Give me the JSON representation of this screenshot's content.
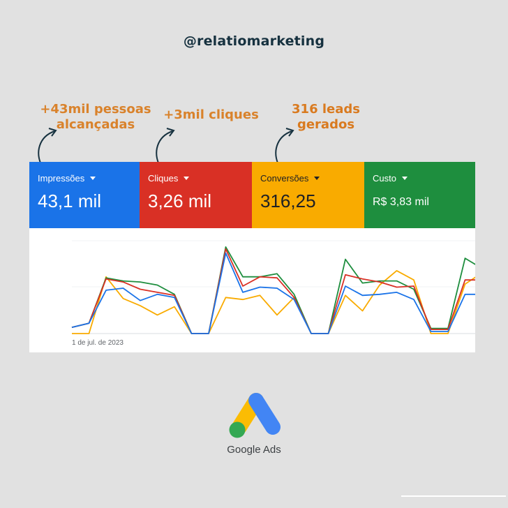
{
  "header": {
    "handle": "@relatiomarketing"
  },
  "annotations": [
    {
      "text_line1": "+43mil pessoas",
      "text_line2": "alcançadas"
    },
    {
      "text_line1": "+3mil cliques"
    },
    {
      "text_line1": "316 leads",
      "text_line2": "gerados"
    }
  ],
  "metrics": [
    {
      "label": "Impressões",
      "value": "43,1 mil",
      "color": "#1a73e8",
      "text_color": "#ffffff"
    },
    {
      "label": "Cliques",
      "value": "3,26 mil",
      "color": "#d93025",
      "text_color": "#ffffff"
    },
    {
      "label": "Conversões",
      "value": "316,25",
      "color": "#f9ab00",
      "text_color": "#202124"
    },
    {
      "label": "Custo",
      "value": "R$ 3,83 mil",
      "color": "#1e8e3e",
      "text_color": "#ffffff"
    }
  ],
  "chart": {
    "date_label": "1 de jul. de 2023"
  },
  "chart_data": {
    "type": "line",
    "x": [
      1,
      2,
      3,
      4,
      5,
      6,
      7,
      8,
      9,
      10,
      11,
      12,
      13,
      14,
      15,
      16,
      17,
      18,
      19,
      20,
      21,
      22,
      23,
      24,
      25
    ],
    "xlabel": "1 de jul. de 2023",
    "series": [
      {
        "name": "Impressões",
        "color": "#1a73e8",
        "values": [
          6,
          10,
          42,
          44,
          32,
          38,
          35,
          0,
          0,
          78,
          40,
          45,
          44,
          33,
          0,
          0,
          46,
          37,
          38,
          40,
          33,
          2,
          2,
          38,
          38
        ]
      },
      {
        "name": "Cliques",
        "color": "#d93025",
        "values": [
          6,
          10,
          53,
          50,
          43,
          40,
          37,
          0,
          0,
          82,
          46,
          55,
          54,
          35,
          0,
          0,
          57,
          53,
          50,
          45,
          46,
          4,
          4,
          52,
          52
        ]
      },
      {
        "name": "Conversões",
        "color": "#f9ab00",
        "values": [
          0,
          0,
          55,
          34,
          27,
          18,
          26,
          0,
          0,
          35,
          33,
          37,
          18,
          35,
          0,
          0,
          37,
          22,
          47,
          61,
          52,
          0,
          0,
          48,
          59
        ]
      },
      {
        "name": "Custo",
        "color": "#1e8e3e",
        "values": [
          6,
          10,
          54,
          51,
          50,
          47,
          38,
          0,
          0,
          84,
          55,
          55,
          58,
          38,
          0,
          0,
          72,
          49,
          51,
          51,
          43,
          5,
          5,
          73,
          63
        ]
      }
    ],
    "ylim": [
      0,
      90
    ],
    "grid": true,
    "legend": "none"
  },
  "footer": {
    "logo_text": "Google Ads"
  }
}
